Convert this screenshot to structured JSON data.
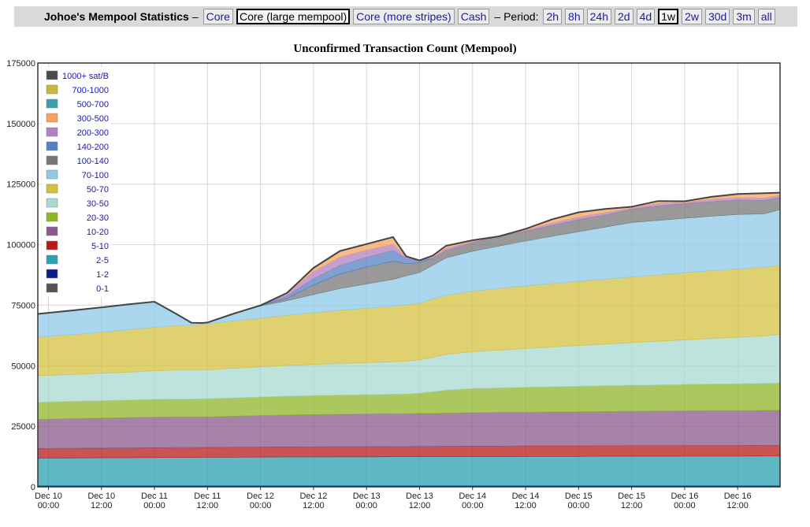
{
  "site_title": "Johoe's Mempool Statistics",
  "dash": "–",
  "nav_views": [
    {
      "label": "Core",
      "active": false
    },
    {
      "label": "Core (large mempool)",
      "active": true
    },
    {
      "label": "Core (more stripes)",
      "active": false
    },
    {
      "label": "Cash",
      "active": false
    }
  ],
  "period_label": "– Period:",
  "nav_periods": [
    {
      "label": "2h",
      "active": false
    },
    {
      "label": "8h",
      "active": false
    },
    {
      "label": "24h",
      "active": false
    },
    {
      "label": "2d",
      "active": false
    },
    {
      "label": "4d",
      "active": false
    },
    {
      "label": "1w",
      "active": true
    },
    {
      "label": "2w",
      "active": false
    },
    {
      "label": "30d",
      "active": false
    },
    {
      "label": "3m",
      "active": false
    },
    {
      "label": "all",
      "active": false
    }
  ],
  "chart_data": {
    "type": "area",
    "title": "Unconfirmed Transaction Count (Mempool)",
    "stacked": true,
    "ylim": [
      0,
      175000
    ],
    "yticks": [
      0,
      25000,
      50000,
      75000,
      100000,
      125000,
      150000,
      175000
    ],
    "ytick_labels": [
      "0",
      "25000",
      "50000",
      "75000",
      "100000",
      "125000",
      "150000",
      "175000"
    ],
    "xlim": [
      -0.2,
      13.8
    ],
    "x_unit": "12-hour periods since Dec 10 00:00",
    "xticks": [
      {
        "x": 0,
        "line1": "Dec 10",
        "line2": "00:00"
      },
      {
        "x": 1,
        "line1": "Dec 10",
        "line2": "12:00"
      },
      {
        "x": 2,
        "line1": "Dec 11",
        "line2": "00:00"
      },
      {
        "x": 3,
        "line1": "Dec 11",
        "line2": "12:00"
      },
      {
        "x": 4,
        "line1": "Dec 12",
        "line2": "00:00"
      },
      {
        "x": 5,
        "line1": "Dec 12",
        "line2": "12:00"
      },
      {
        "x": 6,
        "line1": "Dec 13",
        "line2": "00:00"
      },
      {
        "x": 7,
        "line1": "Dec 13",
        "line2": "12:00"
      },
      {
        "x": 8,
        "line1": "Dec 14",
        "line2": "00:00"
      },
      {
        "x": 9,
        "line1": "Dec 14",
        "line2": "12:00"
      },
      {
        "x": 10,
        "line1": "Dec 15",
        "line2": "00:00"
      },
      {
        "x": 11,
        "line1": "Dec 15",
        "line2": "12:00"
      },
      {
        "x": 12,
        "line1": "Dec 16",
        "line2": "00:00"
      },
      {
        "x": 13,
        "line1": "Dec 16",
        "line2": "12:00"
      }
    ],
    "grid": true,
    "legend_position": "top-left",
    "x": [
      -0.2,
      0.5,
      1.0,
      1.5,
      2.0,
      2.4,
      2.7,
      2.9,
      3.0,
      3.5,
      4.0,
      4.5,
      5.0,
      5.5,
      6.0,
      6.5,
      6.75,
      7.0,
      7.25,
      7.5,
      8.0,
      8.5,
      9.0,
      9.5,
      10.0,
      10.5,
      11.0,
      11.5,
      12.0,
      12.5,
      13.0,
      13.5,
      13.8
    ],
    "series": [
      {
        "name": "0-1",
        "color": "#555555",
        "values": [
          300,
          300,
          300,
          300,
          300,
          300,
          300,
          300,
          300,
          300,
          300,
          300,
          300,
          300,
          300,
          300,
          300,
          300,
          300,
          300,
          300,
          300,
          300,
          300,
          300,
          300,
          300,
          300,
          300,
          300,
          300,
          300,
          300
        ]
      },
      {
        "name": "1-2",
        "color": "#0b1d8c",
        "values": [
          200,
          200,
          200,
          200,
          200,
          200,
          200,
          200,
          200,
          200,
          200,
          200,
          200,
          200,
          200,
          200,
          200,
          200,
          200,
          200,
          200,
          200,
          200,
          200,
          200,
          200,
          200,
          200,
          200,
          200,
          200,
          200,
          200
        ]
      },
      {
        "name": "2-5",
        "color": "#2aa0b0",
        "values": [
          11400,
          11450,
          11500,
          11550,
          11600,
          11650,
          11650,
          11700,
          11700,
          11750,
          11800,
          11850,
          11850,
          11900,
          11900,
          11950,
          11950,
          12000,
          12000,
          12000,
          12050,
          12050,
          12100,
          12100,
          12100,
          12150,
          12150,
          12150,
          12200,
          12200,
          12200,
          12250,
          12250
        ]
      },
      {
        "name": "5-10",
        "color": "#b81a1a",
        "values": [
          3900,
          3950,
          4000,
          4000,
          4050,
          4050,
          4050,
          4050,
          4050,
          4100,
          4100,
          4100,
          4150,
          4150,
          4150,
          4200,
          4200,
          4200,
          4200,
          4250,
          4250,
          4250,
          4300,
          4300,
          4300,
          4300,
          4350,
          4350,
          4350,
          4350,
          4350,
          4400,
          4400
        ]
      },
      {
        "name": "10-20",
        "color": "#8a5a8c",
        "values": [
          12000,
          12300,
          12400,
          12500,
          12600,
          12600,
          12600,
          12600,
          12600,
          12800,
          13000,
          13200,
          13300,
          13400,
          13500,
          13500,
          13500,
          13600,
          13600,
          13700,
          13800,
          13900,
          13900,
          14000,
          14100,
          14150,
          14200,
          14250,
          14300,
          14350,
          14350,
          14400,
          14500
        ]
      },
      {
        "name": "20-30",
        "color": "#8db628",
        "values": [
          7100,
          7150,
          7200,
          7300,
          7400,
          7450,
          7450,
          7500,
          7500,
          7600,
          7700,
          7800,
          7900,
          7950,
          8000,
          8100,
          8200,
          8400,
          9000,
          9500,
          10000,
          10150,
          10300,
          10450,
          10550,
          10650,
          10750,
          10850,
          10950,
          11050,
          11150,
          11200,
          11300
        ]
      },
      {
        "name": "30-50",
        "color": "#a8d8d0",
        "values": [
          11000,
          11100,
          11300,
          11500,
          11800,
          11900,
          11900,
          12000,
          12000,
          12200,
          12400,
          12600,
          12800,
          13000,
          13200,
          13400,
          13500,
          13700,
          14200,
          14700,
          15200,
          15600,
          16000,
          16400,
          16800,
          17200,
          17600,
          18000,
          18400,
          18800,
          19200,
          19600,
          20000
        ]
      },
      {
        "name": "50-70",
        "color": "#d4c040",
        "values": [
          16000,
          16500,
          17000,
          17500,
          18000,
          18400,
          18600,
          18800,
          19000,
          19600,
          20200,
          20800,
          21400,
          22000,
          22500,
          23000,
          23300,
          23600,
          24000,
          24400,
          25000,
          25500,
          25900,
          26200,
          26500,
          26800,
          27100,
          27400,
          27700,
          28000,
          28200,
          28400,
          28500
        ]
      },
      {
        "name": "70-100",
        "color": "#8ecae8",
        "values": [
          9500,
          10000,
          10200,
          10500,
          10500,
          5000,
          1000,
          500,
          500,
          3000,
          5000,
          6000,
          7500,
          9000,
          10000,
          11000,
          12000,
          12500,
          14000,
          15500,
          16500,
          17500,
          18500,
          19500,
          20500,
          21500,
          22500,
          22500,
          22500,
          22500,
          22500,
          22000,
          23000
        ]
      },
      {
        "name": "100-140",
        "color": "#777777",
        "values": [
          0,
          0,
          0,
          0,
          0,
          0,
          0,
          0,
          0,
          0,
          200,
          1000,
          4000,
          6000,
          7000,
          7500,
          5000,
          4000,
          3000,
          3000,
          3500,
          4000,
          4000,
          4500,
          5000,
          5000,
          5500,
          6000,
          6000,
          6000,
          6000,
          5500,
          5000
        ]
      },
      {
        "name": "140-200",
        "color": "#5480c0",
        "values": [
          0,
          0,
          0,
          0,
          0,
          0,
          0,
          0,
          0,
          0,
          0,
          1000,
          2500,
          3500,
          4000,
          4500,
          2000,
          1000,
          0,
          0,
          0,
          0,
          0,
          0,
          0,
          0,
          0,
          0,
          0,
          0,
          0,
          0,
          0
        ]
      },
      {
        "name": "200-300",
        "color": "#b080c0",
        "values": [
          0,
          0,
          0,
          0,
          0,
          0,
          0,
          0,
          0,
          0,
          0,
          1000,
          3000,
          3500,
          3000,
          2500,
          500,
          0,
          500,
          1000,
          500,
          0,
          500,
          1000,
          1000,
          1000,
          500,
          1000,
          500,
          1000,
          1000,
          1000,
          1000
        ]
      },
      {
        "name": "300-500",
        "color": "#f4a460",
        "values": [
          0,
          0,
          0,
          0,
          0,
          0,
          0,
          0,
          0,
          0,
          0,
          200,
          1500,
          2500,
          2500,
          3000,
          500,
          0,
          500,
          1000,
          500,
          0,
          500,
          1500,
          2000,
          1500,
          500,
          1000,
          500,
          1000,
          1500,
          2000,
          1000
        ]
      },
      {
        "name": "500-700",
        "color": "#3aa0b0",
        "values": [
          0,
          0,
          0,
          0,
          0,
          0,
          0,
          0,
          0,
          0,
          0,
          0,
          0,
          0,
          0,
          0,
          0,
          0,
          0,
          0,
          0,
          0,
          0,
          0,
          0,
          0,
          0,
          0,
          0,
          0,
          0,
          0,
          0
        ]
      },
      {
        "name": "700-1000",
        "color": "#c8b83a",
        "values": [
          0,
          0,
          0,
          0,
          0,
          0,
          0,
          0,
          0,
          0,
          0,
          0,
          0,
          0,
          0,
          0,
          0,
          0,
          0,
          0,
          0,
          0,
          0,
          0,
          0,
          0,
          0,
          0,
          0,
          0,
          0,
          0,
          0
        ]
      },
      {
        "name": "1000+ sat/B",
        "color": "#4a4a4a",
        "values": [
          0,
          0,
          0,
          0,
          0,
          0,
          0,
          0,
          0,
          0,
          0,
          0,
          0,
          0,
          0,
          0,
          0,
          0,
          0,
          0,
          0,
          0,
          0,
          0,
          0,
          0,
          0,
          0,
          0,
          0,
          0,
          0,
          0
        ]
      }
    ],
    "legend": [
      "1000+ sat/B",
      "700-1000",
      "500-700",
      "300-500",
      "200-300",
      "140-200",
      "100-140",
      "70-100",
      "50-70",
      "30-50",
      "20-30",
      "10-20",
      "5-10",
      "2-5",
      "1-2",
      "0-1"
    ],
    "outline_color": "#444444"
  }
}
